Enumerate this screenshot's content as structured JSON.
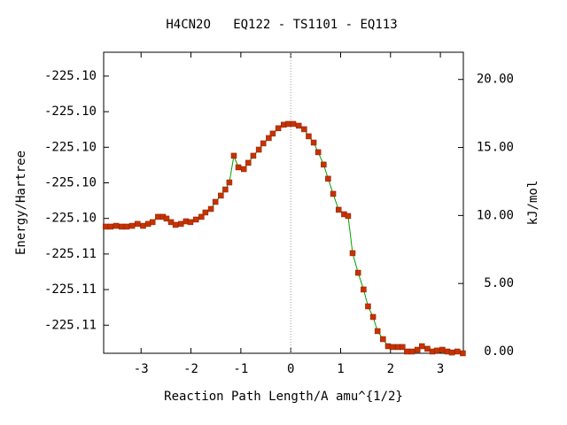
{
  "chart_data": {
    "type": "line",
    "title": "H4CN2O   EQ122 - TS1101 - EQ113",
    "x_label": "Reaction Path Length/A amu^{1/2}",
    "y_label": "Energy/Hartree",
    "y2_label": "kJ/mol",
    "xlim": [
      -3.75,
      3.46
    ],
    "xticks": [
      -3,
      -2,
      -1,
      0,
      1,
      2,
      3
    ],
    "ylim": [
      -225.10799,
      -225.09953
    ],
    "yticks": [
      {
        "value": -225.1072,
        "label": "-225.11"
      },
      {
        "value": -225.1062,
        "label": "-225.11"
      },
      {
        "value": -225.1052,
        "label": "-225.11"
      },
      {
        "value": -225.1042,
        "label": "-225.10"
      },
      {
        "value": -225.1032,
        "label": "-225.10"
      },
      {
        "value": -225.1022,
        "label": "-225.10"
      },
      {
        "value": -225.1012,
        "label": "-225.10"
      },
      {
        "value": -225.1002,
        "label": "-225.10"
      }
    ],
    "y2lim": [
      -0.13,
      22.0
    ],
    "y2ticks": [
      {
        "value": 0,
        "label": "0.00"
      },
      {
        "value": 5,
        "label": "5.00"
      },
      {
        "value": 10,
        "label": "10.00"
      },
      {
        "value": 15,
        "label": "15.00"
      },
      {
        "value": 20,
        "label": "20.00"
      }
    ],
    "vline": 0,
    "x": [
      -3.71,
      -3.61,
      -3.5,
      -3.39,
      -3.29,
      -3.18,
      -3.07,
      -2.96,
      -2.86,
      -2.77,
      -2.66,
      -2.56,
      -2.49,
      -2.4,
      -2.31,
      -2.2,
      -2.1,
      -2.01,
      -1.9,
      -1.79,
      -1.71,
      -1.6,
      -1.51,
      -1.4,
      -1.31,
      -1.23,
      -1.14,
      -1.05,
      -0.94,
      -0.85,
      -0.75,
      -0.64,
      -0.55,
      -0.44,
      -0.36,
      -0.25,
      -0.14,
      -0.05,
      0.05,
      0.16,
      0.27,
      0.36,
      0.46,
      0.55,
      0.66,
      0.75,
      0.85,
      0.96,
      1.07,
      1.15,
      1.24,
      1.35,
      1.46,
      1.55,
      1.65,
      1.74,
      1.85,
      1.95,
      2.04,
      2.15,
      2.24,
      2.33,
      2.43,
      2.54,
      2.63,
      2.74,
      2.84,
      2.93,
      3.04,
      3.14,
      3.23,
      3.34,
      3.45
    ],
    "series": [
      {
        "color": "#00a000",
        "marker_color": "#c83200",
        "axis": "y2",
        "values": [
          9.18,
          9.18,
          9.24,
          9.18,
          9.18,
          9.24,
          9.38,
          9.24,
          9.38,
          9.51,
          9.9,
          9.9,
          9.77,
          9.51,
          9.31,
          9.38,
          9.57,
          9.51,
          9.7,
          9.9,
          10.22,
          10.48,
          11.0,
          11.46,
          11.91,
          12.43,
          14.39,
          13.54,
          13.41,
          13.87,
          14.39,
          14.84,
          15.3,
          15.69,
          16.02,
          16.41,
          16.67,
          16.73,
          16.73,
          16.6,
          16.34,
          15.82,
          15.36,
          14.65,
          13.74,
          12.7,
          11.59,
          10.42,
          10.09,
          9.96,
          7.23,
          5.79,
          4.56,
          3.32,
          2.54,
          1.5,
          0.91,
          0.39,
          0.33,
          0.33,
          0.33,
          0,
          0,
          0.13,
          0.39,
          0.2,
          0,
          0.07,
          0.13,
          0,
          -0.07,
          0,
          -0.13
        ]
      }
    ]
  }
}
